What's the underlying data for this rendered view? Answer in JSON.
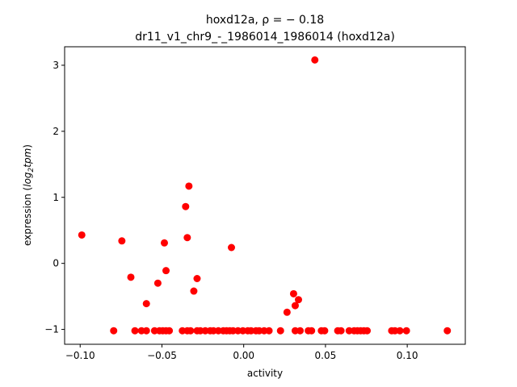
{
  "chart_data": {
    "type": "scatter",
    "title_line1": "hoxd12a, ρ = − 0.18",
    "title_line2": "dr11_v1_chr9_-_1986014_1986014 (hoxd12a)",
    "xlabel": "activity",
    "ylabel_prefix": "expression (",
    "ylabel_math": "log",
    "ylabel_sub": "2",
    "ylabel_math2": "tpm",
    "ylabel_suffix": ")",
    "xlim": [
      -0.1095,
      0.1355
    ],
    "ylim": [
      -1.225,
      3.28
    ],
    "xticks": [
      -0.1,
      -0.05,
      0.0,
      0.05,
      0.1
    ],
    "xtick_labels": [
      "−0.10",
      "−0.05",
      "0.00",
      "0.05",
      "0.10"
    ],
    "yticks": [
      -1,
      0,
      1,
      2,
      3
    ],
    "ytick_labels": [
      "−1",
      "0",
      "1",
      "2",
      "3"
    ],
    "grid": false,
    "marker_color": "#ff0000",
    "points": [
      {
        "x": -0.099,
        "y": 0.43
      },
      {
        "x": -0.0745,
        "y": 0.34
      },
      {
        "x": -0.069,
        "y": -0.21
      },
      {
        "x": -0.0595,
        "y": -0.61
      },
      {
        "x": -0.0525,
        "y": -0.3
      },
      {
        "x": -0.0485,
        "y": 0.31
      },
      {
        "x": -0.0475,
        "y": -0.11
      },
      {
        "x": -0.0355,
        "y": 0.86
      },
      {
        "x": -0.0345,
        "y": 0.39
      },
      {
        "x": -0.0335,
        "y": 1.17
      },
      {
        "x": -0.0305,
        "y": -0.42
      },
      {
        "x": -0.0285,
        "y": -0.23
      },
      {
        "x": -0.0075,
        "y": 0.24
      },
      {
        "x": 0.0265,
        "y": -0.74
      },
      {
        "x": 0.0305,
        "y": -0.46
      },
      {
        "x": 0.0315,
        "y": -0.64
      },
      {
        "x": 0.0335,
        "y": -0.55
      },
      {
        "x": 0.0435,
        "y": 3.08
      },
      {
        "x": -0.0795,
        "y": -1.02
      },
      {
        "x": -0.0665,
        "y": -1.02
      },
      {
        "x": -0.0625,
        "y": -1.02
      },
      {
        "x": -0.0595,
        "y": -1.02
      },
      {
        "x": -0.0545,
        "y": -1.02
      },
      {
        "x": -0.0515,
        "y": -1.02
      },
      {
        "x": -0.0495,
        "y": -1.02
      },
      {
        "x": -0.0475,
        "y": -1.02
      },
      {
        "x": -0.0455,
        "y": -1.02
      },
      {
        "x": -0.0375,
        "y": -1.02
      },
      {
        "x": -0.0345,
        "y": -1.02
      },
      {
        "x": -0.0325,
        "y": -1.02
      },
      {
        "x": -0.0285,
        "y": -1.02
      },
      {
        "x": -0.0265,
        "y": -1.02
      },
      {
        "x": -0.0235,
        "y": -1.02
      },
      {
        "x": -0.0205,
        "y": -1.02
      },
      {
        "x": -0.0185,
        "y": -1.02
      },
      {
        "x": -0.0155,
        "y": -1.02
      },
      {
        "x": -0.0125,
        "y": -1.02
      },
      {
        "x": -0.0105,
        "y": -1.02
      },
      {
        "x": -0.0085,
        "y": -1.02
      },
      {
        "x": -0.0065,
        "y": -1.02
      },
      {
        "x": -0.0035,
        "y": -1.02
      },
      {
        "x": -0.0005,
        "y": -1.02
      },
      {
        "x": 0.0025,
        "y": -1.02
      },
      {
        "x": 0.0045,
        "y": -1.02
      },
      {
        "x": 0.0075,
        "y": -1.02
      },
      {
        "x": 0.0095,
        "y": -1.02
      },
      {
        "x": 0.0125,
        "y": -1.02
      },
      {
        "x": 0.0155,
        "y": -1.02
      },
      {
        "x": 0.0225,
        "y": -1.02
      },
      {
        "x": 0.0315,
        "y": -1.02
      },
      {
        "x": 0.0345,
        "y": -1.02
      },
      {
        "x": 0.0395,
        "y": -1.02
      },
      {
        "x": 0.0415,
        "y": -1.02
      },
      {
        "x": 0.0475,
        "y": -1.02
      },
      {
        "x": 0.0495,
        "y": -1.02
      },
      {
        "x": 0.0575,
        "y": -1.02
      },
      {
        "x": 0.0595,
        "y": -1.02
      },
      {
        "x": 0.0645,
        "y": -1.02
      },
      {
        "x": 0.0675,
        "y": -1.02
      },
      {
        "x": 0.0695,
        "y": -1.02
      },
      {
        "x": 0.0715,
        "y": -1.02
      },
      {
        "x": 0.0735,
        "y": -1.02
      },
      {
        "x": 0.0755,
        "y": -1.02
      },
      {
        "x": 0.0905,
        "y": -1.02
      },
      {
        "x": 0.0925,
        "y": -1.02
      },
      {
        "x": 0.0955,
        "y": -1.02
      },
      {
        "x": 0.0995,
        "y": -1.02
      },
      {
        "x": 0.1245,
        "y": -1.02
      }
    ]
  }
}
